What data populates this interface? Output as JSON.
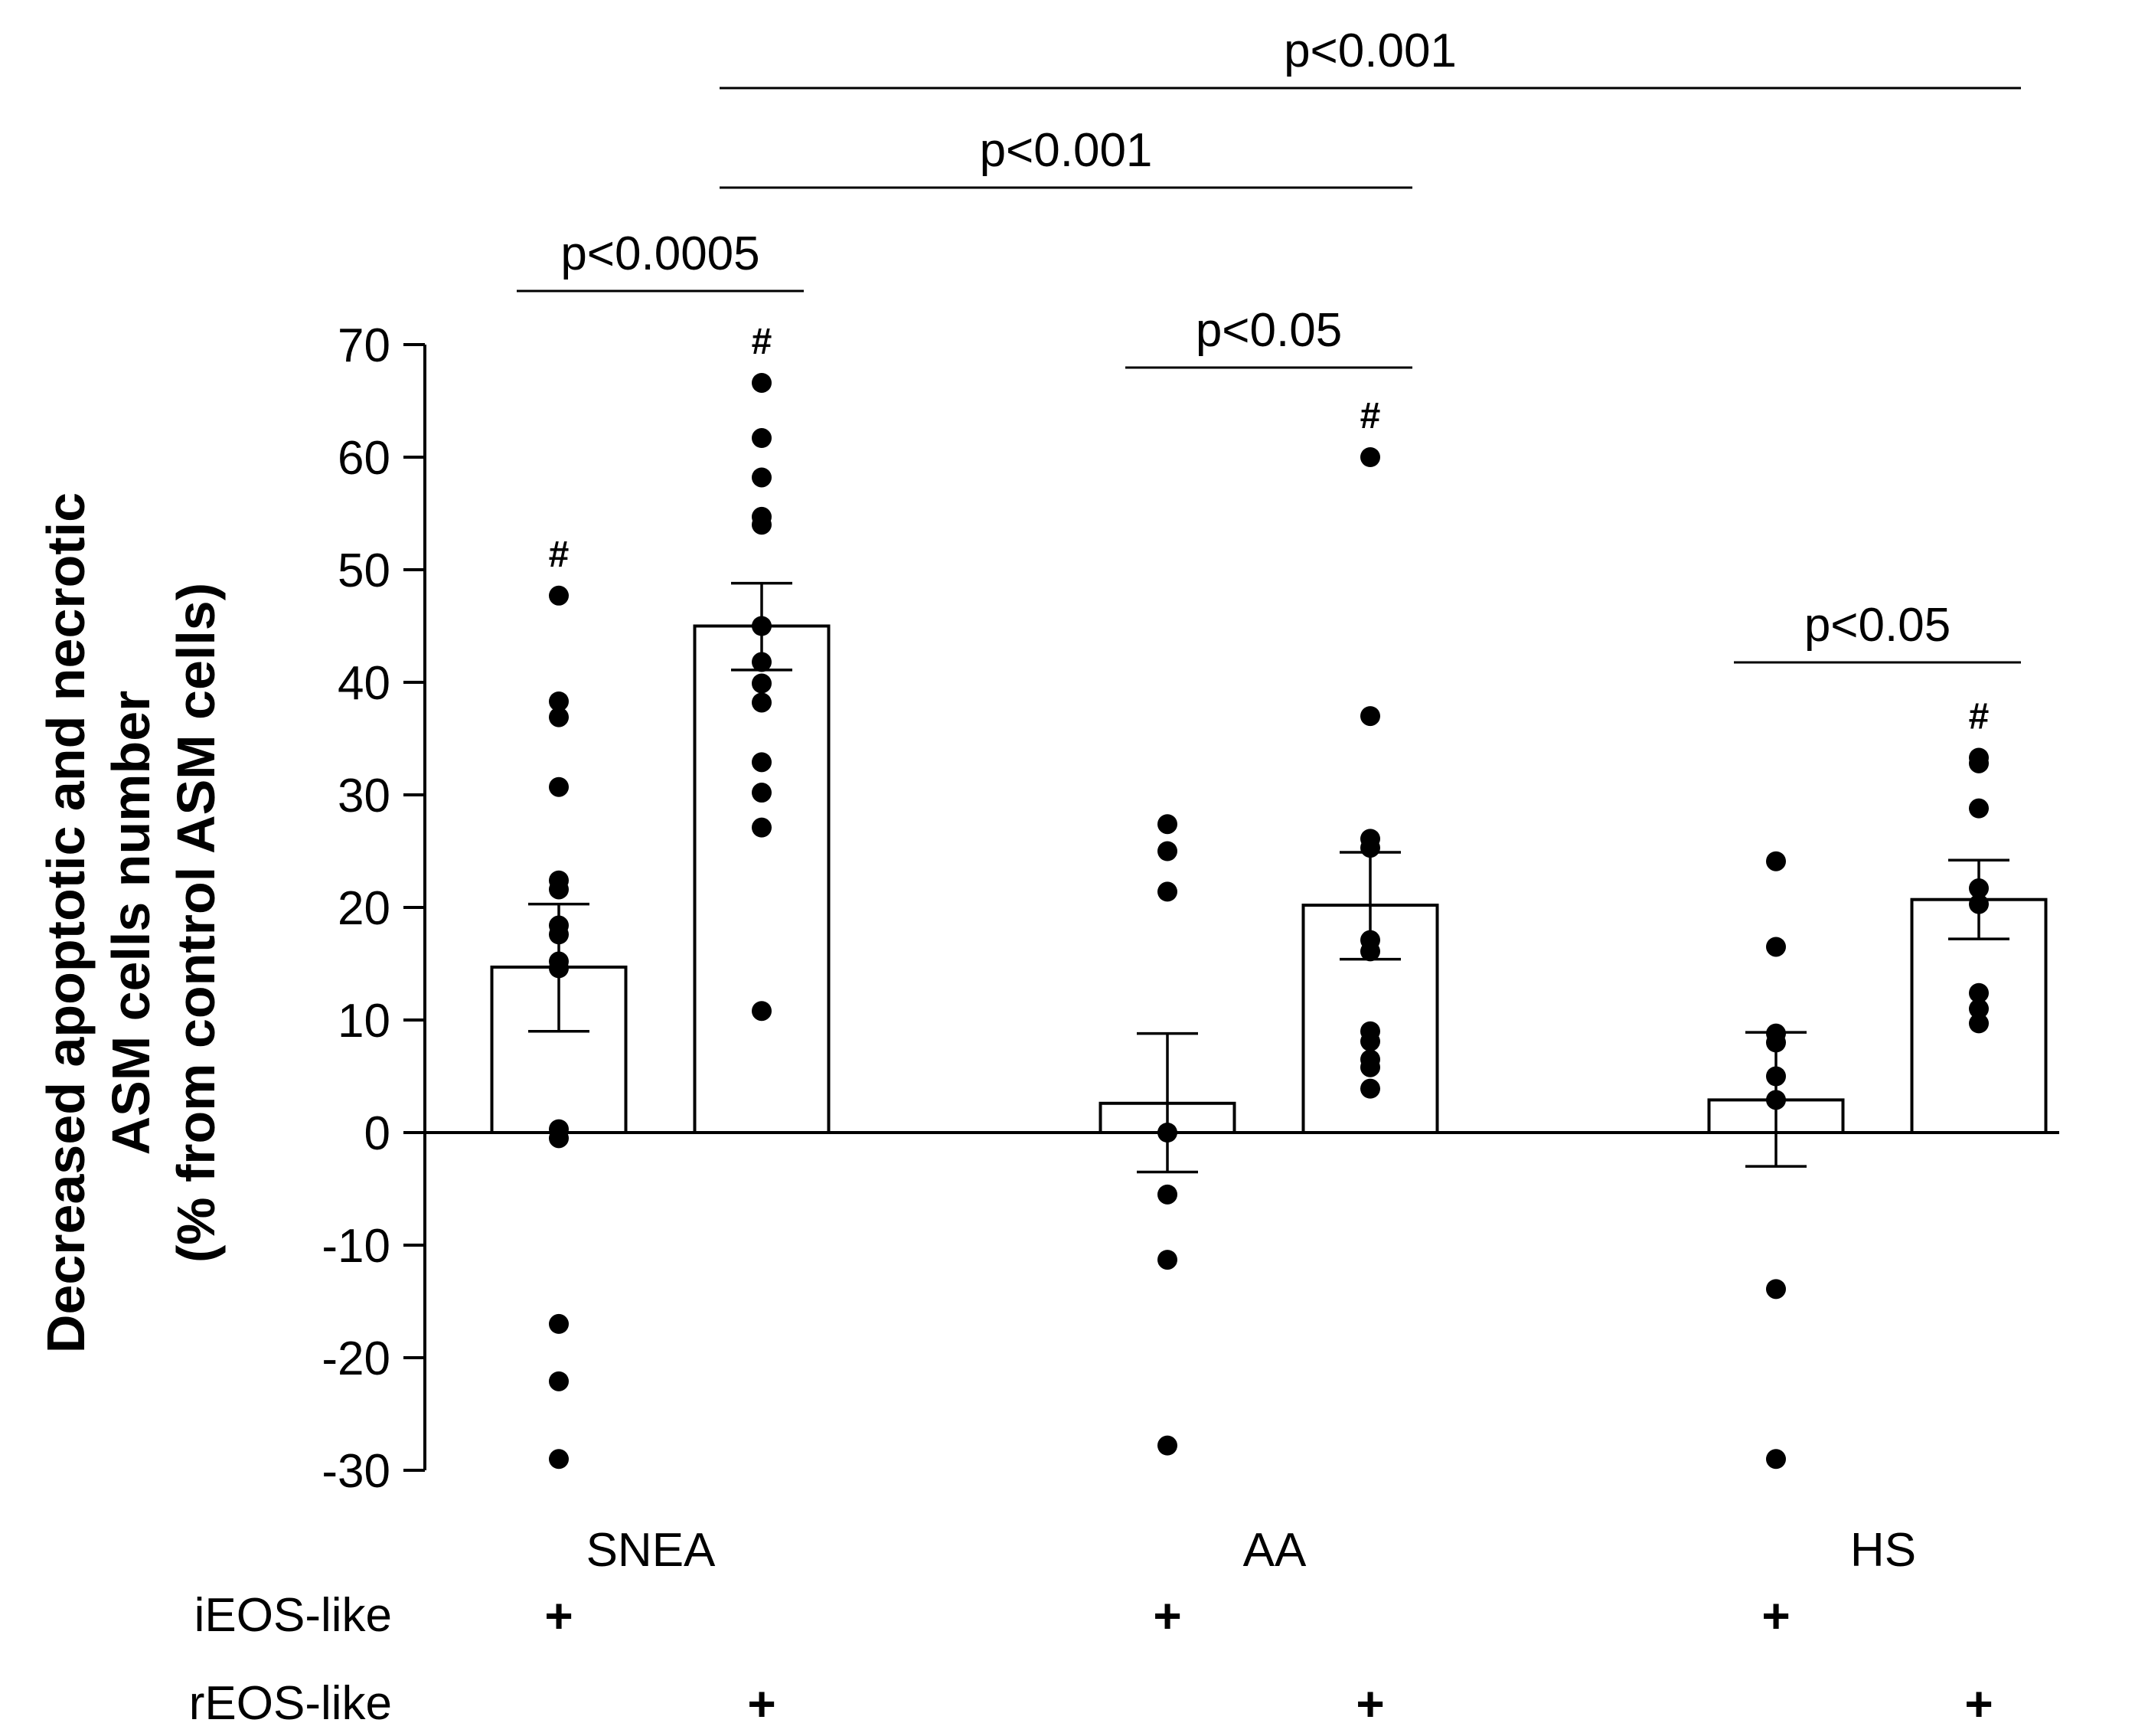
{
  "chart_data": {
    "type": "bar",
    "title": "",
    "ylabel_lines": [
      "Decreased apoptotic and necrotic",
      "ASM cells number",
      "(% from control ASM cells)"
    ],
    "ylim": [
      -30,
      70
    ],
    "yticks": [
      70,
      60,
      50,
      40,
      30,
      20,
      10,
      0,
      -10,
      -20,
      -30
    ],
    "groups": [
      "SNEA",
      "AA",
      "HS"
    ],
    "row_labels": [
      "iEOS-like",
      "rEOS-like"
    ],
    "marker_symbol": "+",
    "hash_symbol": "#",
    "bars": [
      {
        "group": "SNEA",
        "condition": "iEOS-like",
        "mean": 14.7,
        "sem_low": 9.0,
        "sem_high": 20.3,
        "hash": true,
        "points": [
          47.7,
          38.3,
          36.9,
          30.7,
          22.4,
          21.6,
          18.4,
          17.6,
          15.2,
          14.6,
          0.3,
          -0.5,
          -17.0,
          -22.1,
          -29.0
        ]
      },
      {
        "group": "SNEA",
        "condition": "rEOS-like",
        "mean": 45.0,
        "sem_low": 41.1,
        "sem_high": 48.8,
        "hash": true,
        "points": [
          66.6,
          61.7,
          58.2,
          54.7,
          54.0,
          45.0,
          41.8,
          39.9,
          38.2,
          32.9,
          30.2,
          27.1,
          10.8
        ]
      },
      {
        "group": "AA",
        "condition": "iEOS-like",
        "mean": 2.6,
        "sem_low": -3.5,
        "sem_high": 8.8,
        "hash": false,
        "points": [
          27.4,
          25.0,
          21.4,
          0.0,
          -5.5,
          -11.3,
          -27.8
        ]
      },
      {
        "group": "AA",
        "condition": "rEOS-like",
        "mean": 20.2,
        "sem_low": 15.4,
        "sem_high": 24.9,
        "hash": true,
        "points": [
          60.0,
          37.0,
          26.1,
          25.3,
          17.1,
          16.1,
          9.0,
          8.1,
          6.5,
          5.8,
          3.9
        ]
      },
      {
        "group": "HS",
        "condition": "iEOS-like",
        "mean": 2.9,
        "sem_low": -3.0,
        "sem_high": 8.9,
        "hash": false,
        "points": [
          24.1,
          16.5,
          8.8,
          8.0,
          5.0,
          2.9,
          -13.9,
          -29.0
        ]
      },
      {
        "group": "HS",
        "condition": "rEOS-like",
        "mean": 20.7,
        "sem_low": 17.2,
        "sem_high": 24.2,
        "hash": true,
        "points": [
          33.3,
          32.8,
          28.8,
          21.7,
          20.3,
          12.4,
          11.0,
          9.7
        ]
      }
    ],
    "annotations": [
      {
        "label": "p<0.0005",
        "from_bar": 0,
        "to_bar": 1
      },
      {
        "label": "p<0.001",
        "from_bar": 1,
        "to_bar": 3
      },
      {
        "label": "p<0.001",
        "from_bar": 1,
        "to_bar": 5
      },
      {
        "label": "p<0.05",
        "from_bar": 2,
        "to_bar": 3
      },
      {
        "label": "p<0.05",
        "from_bar": 4,
        "to_bar": 5
      }
    ]
  }
}
